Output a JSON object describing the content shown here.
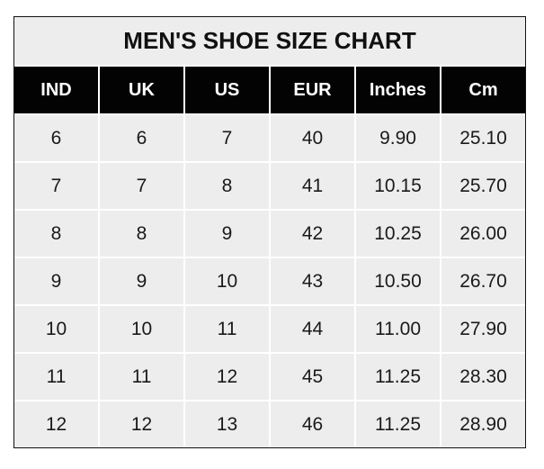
{
  "chart_data": {
    "type": "table",
    "title": "MEN'S SHOE SIZE CHART",
    "columns": [
      "IND",
      "UK",
      "US",
      "EUR",
      "Inches",
      "Cm"
    ],
    "rows": [
      [
        "6",
        "6",
        "7",
        "40",
        "9.90",
        "25.10"
      ],
      [
        "7",
        "7",
        "8",
        "41",
        "10.15",
        "25.70"
      ],
      [
        "8",
        "8",
        "9",
        "42",
        "10.25",
        "26.00"
      ],
      [
        "9",
        "9",
        "10",
        "43",
        "10.50",
        "26.70"
      ],
      [
        "10",
        "10",
        "11",
        "44",
        "11.00",
        "27.90"
      ],
      [
        "11",
        "11",
        "12",
        "45",
        "11.25",
        "28.30"
      ],
      [
        "12",
        "12",
        "13",
        "46",
        "11.25",
        "28.90"
      ]
    ],
    "colors": {
      "header_bg": "#030303",
      "header_text": "#ffffff",
      "cell_bg": "#ededed",
      "grid": "#ffffff"
    }
  }
}
